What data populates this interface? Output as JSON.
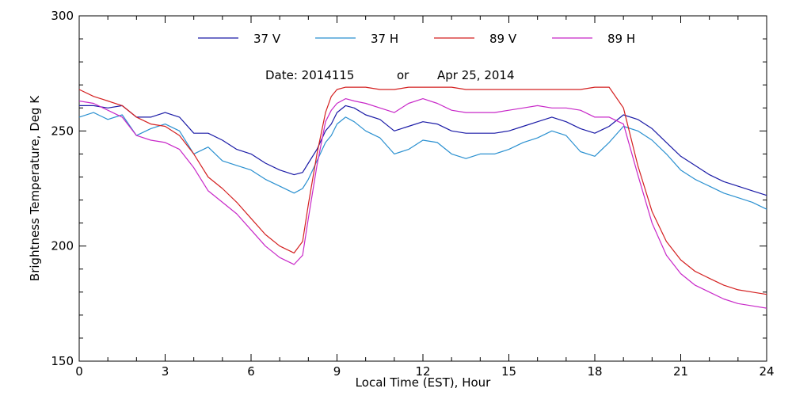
{
  "chart_data": {
    "type": "line",
    "title": "",
    "annotation": {
      "date_label": "Date: 2014115",
      "or_label": "or",
      "date_text": "Apr 25, 2014"
    },
    "xlabel": "Local Time (EST), Hour",
    "ylabel": "Brightness Temperature, Deg K",
    "xlim": [
      0,
      24
    ],
    "ylim": [
      150,
      300
    ],
    "xticks": [
      0,
      3,
      6,
      9,
      12,
      15,
      18,
      21,
      24
    ],
    "yticks": [
      150,
      200,
      250,
      300
    ],
    "legend_placement": "top",
    "grid": false,
    "series": [
      {
        "name": "37 V",
        "color": "#1a1aa6",
        "x": [
          0,
          0.5,
          1,
          1.5,
          2,
          2.5,
          3,
          3.5,
          4,
          4.5,
          5,
          5.5,
          6,
          6.5,
          7,
          7.5,
          7.8,
          8,
          8.3,
          8.6,
          8.8,
          9,
          9.3,
          9.6,
          10,
          10.5,
          11,
          11.5,
          12,
          12.5,
          13,
          13.5,
          14,
          14.5,
          15,
          15.5,
          16,
          16.5,
          17,
          17.5,
          18,
          18.5,
          19,
          19.5,
          20,
          20.5,
          21,
          21.5,
          22,
          22.5,
          23,
          23.5,
          24
        ],
        "y": [
          261,
          261,
          260,
          261,
          256,
          256,
          258,
          256,
          249,
          249,
          246,
          242,
          240,
          236,
          233,
          231,
          232,
          236,
          242,
          250,
          253,
          258,
          261,
          260,
          257,
          255,
          250,
          252,
          254,
          253,
          250,
          249,
          249,
          249,
          250,
          252,
          254,
          256,
          254,
          251,
          249,
          252,
          257,
          255,
          251,
          245,
          239,
          235,
          231,
          228,
          226,
          224,
          222
        ]
      },
      {
        "name": "37 H",
        "color": "#2a90d0",
        "x": [
          0,
          0.5,
          1,
          1.5,
          2,
          2.5,
          3,
          3.5,
          4,
          4.5,
          5,
          5.5,
          6,
          6.5,
          7,
          7.5,
          7.8,
          8,
          8.3,
          8.6,
          8.8,
          9,
          9.3,
          9.6,
          10,
          10.5,
          11,
          11.5,
          12,
          12.5,
          13,
          13.5,
          14,
          14.5,
          15,
          15.5,
          16,
          16.5,
          17,
          17.5,
          18,
          18.5,
          19,
          19.5,
          20,
          20.5,
          21,
          21.5,
          22,
          22.5,
          23,
          23.5,
          24
        ],
        "y": [
          256,
          258,
          255,
          257,
          248,
          251,
          253,
          250,
          240,
          243,
          237,
          235,
          233,
          229,
          226,
          223,
          225,
          229,
          237,
          245,
          248,
          253,
          256,
          254,
          250,
          247,
          240,
          242,
          246,
          245,
          240,
          238,
          240,
          240,
          242,
          245,
          247,
          250,
          248,
          241,
          239,
          245,
          252,
          250,
          246,
          240,
          233,
          229,
          226,
          223,
          221,
          219,
          216
        ]
      },
      {
        "name": "89 V",
        "color": "#d42020",
        "x": [
          0,
          0.5,
          1,
          1.5,
          2,
          2.5,
          3,
          3.5,
          4,
          4.5,
          5,
          5.5,
          6,
          6.5,
          7,
          7.5,
          7.8,
          8,
          8.3,
          8.6,
          8.8,
          9,
          9.3,
          9.6,
          10,
          10.5,
          11,
          11.5,
          12,
          12.5,
          13,
          13.5,
          14,
          14.5,
          15,
          15.5,
          16,
          16.5,
          17,
          17.5,
          18,
          18.5,
          19,
          19.5,
          20,
          20.5,
          21,
          21.5,
          22,
          22.5,
          23,
          23.5,
          24
        ],
        "y": [
          268,
          265,
          263,
          261,
          256,
          253,
          252,
          248,
          240,
          230,
          225,
          219,
          212,
          205,
          200,
          197,
          202,
          218,
          240,
          258,
          265,
          268,
          269,
          269,
          269,
          268,
          268,
          269,
          269,
          269,
          269,
          268,
          268,
          268,
          268,
          268,
          268,
          268,
          268,
          268,
          269,
          269,
          260,
          235,
          215,
          202,
          194,
          189,
          186,
          183,
          181,
          180,
          179
        ]
      },
      {
        "name": "89 H",
        "color": "#c828c8",
        "x": [
          0,
          0.5,
          1,
          1.5,
          2,
          2.5,
          3,
          3.5,
          4,
          4.5,
          5,
          5.5,
          6,
          6.5,
          7,
          7.5,
          7.8,
          8,
          8.3,
          8.6,
          8.8,
          9,
          9.3,
          9.6,
          10,
          10.5,
          11,
          11.5,
          12,
          12.5,
          13,
          13.5,
          14,
          14.5,
          15,
          15.5,
          16,
          16.5,
          17,
          17.5,
          18,
          18.5,
          19,
          19.5,
          20,
          20.5,
          21,
          21.5,
          22,
          22.5,
          23,
          23.5,
          24
        ],
        "y": [
          263,
          262,
          259,
          256,
          248,
          246,
          245,
          242,
          234,
          224,
          219,
          214,
          207,
          200,
          195,
          192,
          196,
          212,
          235,
          254,
          259,
          262,
          264,
          263,
          262,
          260,
          258,
          262,
          264,
          262,
          259,
          258,
          258,
          258,
          259,
          260,
          261,
          260,
          260,
          259,
          256,
          256,
          253,
          231,
          210,
          196,
          188,
          183,
          180,
          177,
          175,
          174,
          173
        ]
      }
    ]
  }
}
